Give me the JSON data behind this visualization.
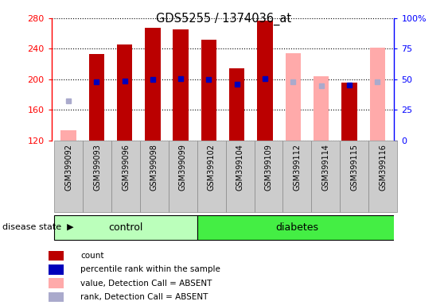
{
  "title": "GDS5255 / 1374036_at",
  "samples": [
    "GSM399092",
    "GSM399093",
    "GSM399096",
    "GSM399098",
    "GSM399099",
    "GSM399102",
    "GSM399104",
    "GSM399109",
    "GSM399112",
    "GSM399114",
    "GSM399115",
    "GSM399116"
  ],
  "n_control": 5,
  "n_diabetes": 7,
  "ylim": [
    120,
    280
  ],
  "ylim_right": [
    0,
    100
  ],
  "yticks_left": [
    120,
    160,
    200,
    240,
    280
  ],
  "yticks_right": [
    0,
    25,
    50,
    75,
    100
  ],
  "ytick_right_labels": [
    "0",
    "25",
    "50",
    "75",
    "100%"
  ],
  "count_values": [
    null,
    233,
    246,
    268,
    265,
    252,
    214,
    277,
    null,
    null,
    196,
    null
  ],
  "rank_values": [
    null,
    197,
    198,
    200,
    201,
    200,
    194,
    201,
    null,
    null,
    193,
    null
  ],
  "absent_value_values": [
    133,
    null,
    null,
    null,
    null,
    null,
    null,
    null,
    234,
    204,
    null,
    241
  ],
  "absent_rank_values": [
    172,
    null,
    null,
    null,
    null,
    null,
    null,
    null,
    197,
    192,
    null,
    197
  ],
  "color_red": "#bb0000",
  "color_blue": "#0000bb",
  "color_pink": "#ffaaaa",
  "color_lightblue": "#aaaacc",
  "bar_width": 0.55,
  "group_colors": {
    "control": "#bbffbb",
    "diabetes": "#44ee44"
  },
  "sample_box_color": "#cccccc",
  "legend_items": [
    {
      "label": "count",
      "color": "#bb0000"
    },
    {
      "label": "percentile rank within the sample",
      "color": "#0000bb"
    },
    {
      "label": "value, Detection Call = ABSENT",
      "color": "#ffaaaa"
    },
    {
      "label": "rank, Detection Call = ABSENT",
      "color": "#aaaacc"
    }
  ]
}
